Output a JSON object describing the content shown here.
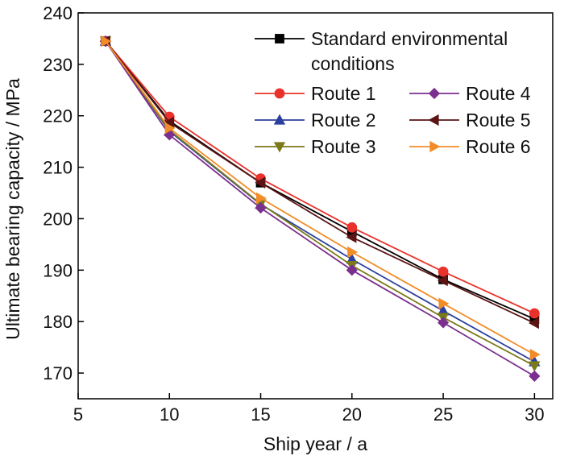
{
  "chart_data": {
    "type": "line",
    "title": "",
    "xlabel": "Ship year / a",
    "ylabel": "Ultimate bearing capacity / MPa",
    "xlim": [
      5,
      31
    ],
    "ylim": [
      165,
      240
    ],
    "xticks": [
      5,
      10,
      15,
      20,
      25,
      30
    ],
    "yticks": [
      170,
      180,
      190,
      200,
      210,
      220,
      230,
      240
    ],
    "grid": false,
    "legend_position": "top-right",
    "x": [
      6.5,
      10,
      15,
      20,
      25,
      30
    ],
    "series": [
      {
        "name": "Standard environmental conditions",
        "name_lines": [
          "Standard environmental",
          "conditions"
        ],
        "color": "#000000",
        "marker": "square",
        "values": [
          234.5,
          219.0,
          207.0,
          197.5,
          188.2,
          180.5
        ]
      },
      {
        "name": "Route 1",
        "color": "#e8322b",
        "marker": "circle",
        "values": [
          234.5,
          219.8,
          207.8,
          198.3,
          189.7,
          181.6
        ]
      },
      {
        "name": "Route 2",
        "color": "#2b3f9e",
        "marker": "triangle-up",
        "values": [
          234.5,
          217.0,
          202.8,
          192.1,
          182.1,
          172.2
        ]
      },
      {
        "name": "Route 3",
        "color": "#7a7a1a",
        "marker": "triangle-down",
        "values": [
          234.5,
          217.2,
          202.9,
          190.9,
          180.8,
          171.4
        ]
      },
      {
        "name": "Route 4",
        "color": "#7b2f8e",
        "marker": "diamond",
        "values": [
          234.5,
          216.3,
          202.1,
          190.0,
          179.8,
          169.4
        ]
      },
      {
        "name": "Route 5",
        "color": "#5a1414",
        "marker": "triangle-left",
        "values": [
          234.5,
          218.7,
          207.0,
          196.4,
          188.0,
          179.7
        ]
      },
      {
        "name": "Route 6",
        "color": "#f28c28",
        "marker": "triangle-right",
        "values": [
          234.5,
          217.6,
          204.0,
          193.5,
          183.5,
          173.6
        ]
      }
    ]
  }
}
